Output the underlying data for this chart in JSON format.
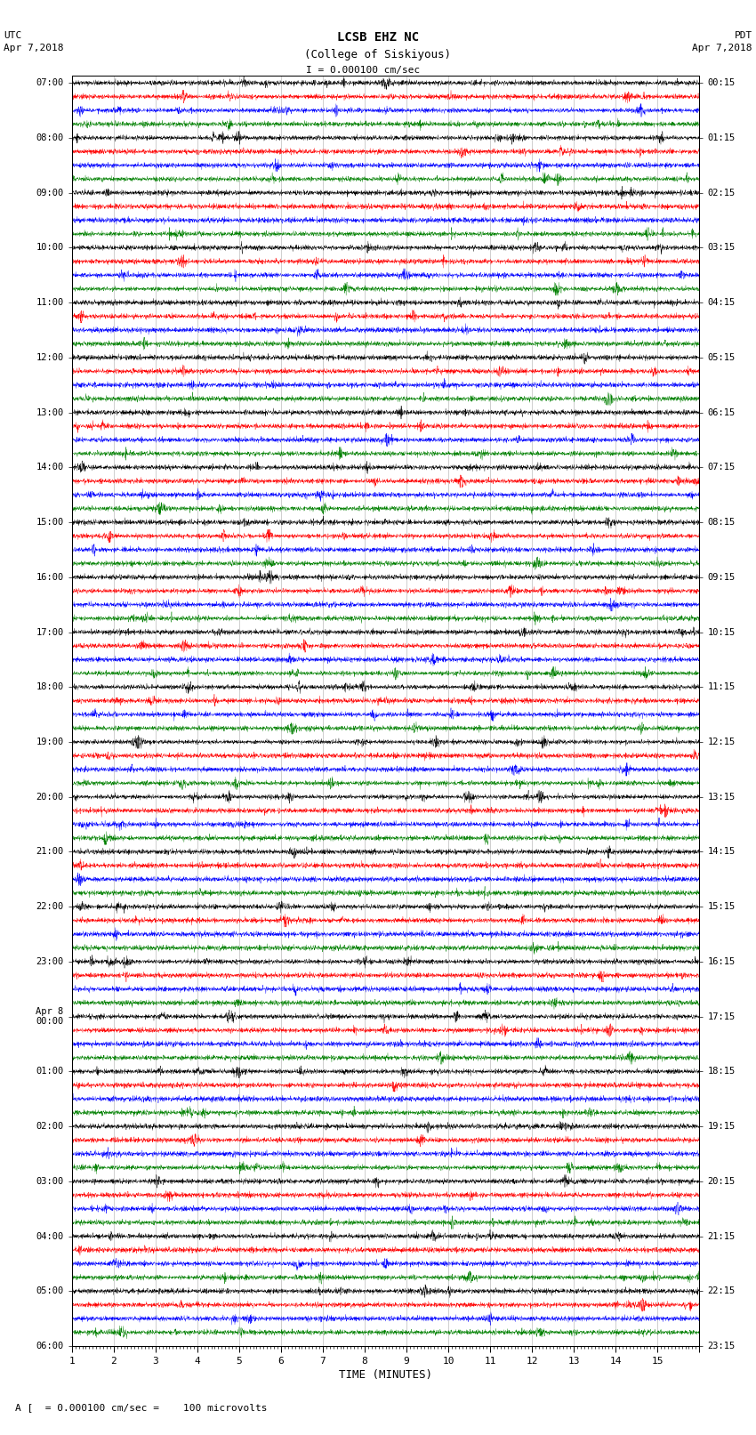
{
  "title_line1": "LCSB EHZ NC",
  "title_line2": "(College of Siskiyous)",
  "scale_label": "I = 0.000100 cm/sec",
  "footer_label": "A [  = 0.000100 cm/sec =    100 microvolts",
  "xlabel": "TIME (MINUTES)",
  "left_label_times": [
    "07:00",
    "08:00",
    "09:00",
    "10:00",
    "11:00",
    "12:00",
    "13:00",
    "14:00",
    "15:00",
    "16:00",
    "17:00",
    "18:00",
    "19:00",
    "20:00",
    "21:00",
    "22:00",
    "23:00",
    "Apr 8\n00:00",
    "01:00",
    "02:00",
    "03:00",
    "04:00",
    "05:00",
    "06:00"
  ],
  "right_label_times": [
    "00:15",
    "01:15",
    "02:15",
    "03:15",
    "04:15",
    "05:15",
    "06:15",
    "07:15",
    "08:15",
    "09:15",
    "10:15",
    "11:15",
    "12:15",
    "13:15",
    "14:15",
    "15:15",
    "16:15",
    "17:15",
    "18:15",
    "19:15",
    "20:15",
    "21:15",
    "22:15",
    "23:15"
  ],
  "num_traces": 92,
  "trace_colors_cycle": [
    "black",
    "red",
    "blue",
    "green"
  ],
  "bg_color": "white",
  "time_minutes": 15,
  "samples_per_trace": 3000,
  "seed": 42
}
